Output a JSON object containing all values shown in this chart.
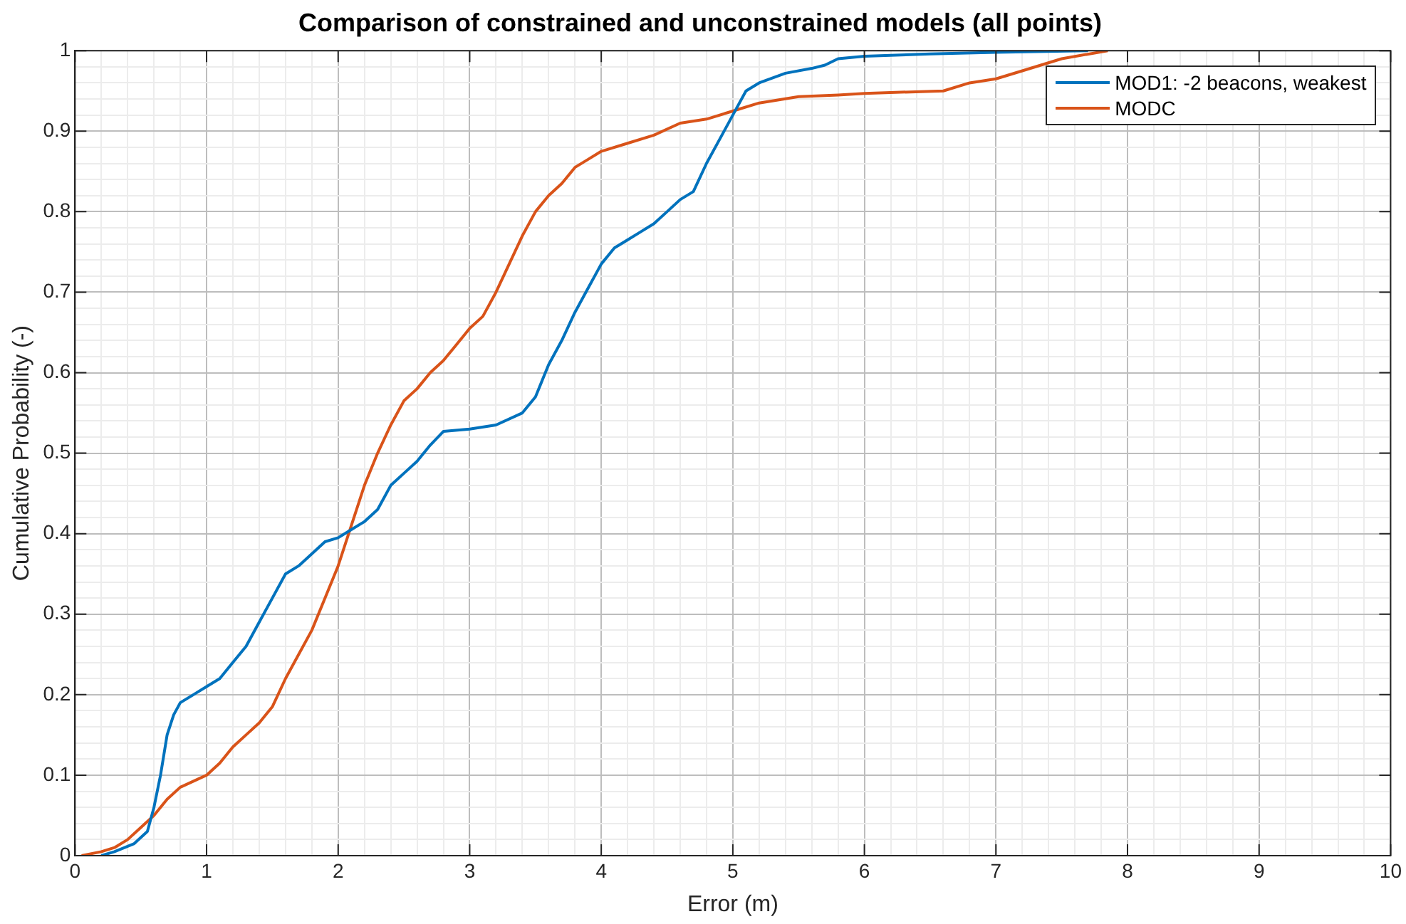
{
  "chart_data": {
    "type": "line",
    "title": "Comparison of constrained and unconstrained models (all points)",
    "xlabel": "Error (m)",
    "ylabel": "Cumulative Probability (-)",
    "series": [
      {
        "name": "MOD1: -2 beacons, weakest",
        "color": "#0072bd",
        "x": [
          0.2,
          0.3,
          0.45,
          0.55,
          0.6,
          0.65,
          0.7,
          0.75,
          0.8,
          0.9,
          1.0,
          1.1,
          1.2,
          1.3,
          1.4,
          1.5,
          1.6,
          1.7,
          1.8,
          1.9,
          2.0,
          2.1,
          2.2,
          2.3,
          2.4,
          2.5,
          2.6,
          2.7,
          2.8,
          3.0,
          3.2,
          3.4,
          3.5,
          3.6,
          3.7,
          3.8,
          3.9,
          4.0,
          4.1,
          4.2,
          4.3,
          4.4,
          4.5,
          4.6,
          4.7,
          4.8,
          4.9,
          5.0,
          5.1,
          5.2,
          5.4,
          5.6,
          5.7,
          5.8,
          6.0,
          6.5,
          7.0,
          7.7
        ],
        "values": [
          0,
          0.005,
          0.015,
          0.03,
          0.06,
          0.1,
          0.15,
          0.175,
          0.19,
          0.2,
          0.21,
          0.22,
          0.24,
          0.26,
          0.29,
          0.32,
          0.35,
          0.36,
          0.375,
          0.39,
          0.395,
          0.405,
          0.415,
          0.43,
          0.46,
          0.475,
          0.49,
          0.51,
          0.527,
          0.53,
          0.535,
          0.55,
          0.57,
          0.61,
          0.64,
          0.675,
          0.705,
          0.735,
          0.755,
          0.765,
          0.775,
          0.785,
          0.8,
          0.815,
          0.825,
          0.86,
          0.89,
          0.92,
          0.95,
          0.96,
          0.972,
          0.978,
          0.982,
          0.99,
          0.993,
          0.996,
          0.998,
          1.0
        ]
      },
      {
        "name": "MODC",
        "color": "#d95319",
        "x": [
          0.05,
          0.2,
          0.3,
          0.4,
          0.5,
          0.6,
          0.7,
          0.8,
          1.0,
          1.1,
          1.2,
          1.3,
          1.4,
          1.5,
          1.6,
          1.7,
          1.8,
          1.9,
          2.0,
          2.1,
          2.2,
          2.3,
          2.4,
          2.5,
          2.6,
          2.7,
          2.8,
          2.9,
          3.0,
          3.1,
          3.2,
          3.3,
          3.4,
          3.5,
          3.6,
          3.7,
          3.8,
          3.9,
          4.0,
          4.2,
          4.4,
          4.6,
          4.8,
          5.0,
          5.2,
          5.5,
          5.8,
          6.0,
          6.6,
          6.8,
          7.0,
          7.2,
          7.5,
          7.85
        ],
        "values": [
          0,
          0.005,
          0.01,
          0.02,
          0.035,
          0.05,
          0.07,
          0.085,
          0.1,
          0.115,
          0.135,
          0.15,
          0.165,
          0.185,
          0.22,
          0.25,
          0.28,
          0.32,
          0.36,
          0.41,
          0.46,
          0.5,
          0.535,
          0.565,
          0.58,
          0.6,
          0.615,
          0.635,
          0.655,
          0.67,
          0.7,
          0.735,
          0.77,
          0.8,
          0.82,
          0.835,
          0.855,
          0.865,
          0.875,
          0.885,
          0.895,
          0.91,
          0.915,
          0.925,
          0.935,
          0.943,
          0.945,
          0.947,
          0.95,
          0.96,
          0.965,
          0.975,
          0.99,
          1.0
        ]
      }
    ],
    "xlim": [
      0,
      10
    ],
    "xticks": [
      0,
      {
        "value": 0.2,
        "label": null
      },
      {
        "value": 0.4,
        "label": null
      },
      {
        "value": 0.6,
        "label": null
      },
      {
        "value": 0.8,
        "label": null
      },
      1,
      {
        "value": 1.2,
        "label": null
      },
      {
        "value": 1.4,
        "label": null
      },
      {
        "value": 1.6,
        "label": null
      },
      {
        "value": 1.8,
        "label": null
      },
      2,
      {
        "value": 2.2,
        "label": null
      },
      {
        "value": 2.4,
        "label": null
      },
      {
        "value": 2.6,
        "label": null
      },
      {
        "value": 2.8,
        "label": null
      },
      3,
      {
        "value": 3.2,
        "label": null
      },
      {
        "value": 3.4,
        "label": null
      },
      {
        "value": 3.6,
        "label": null
      },
      {
        "value": 3.8,
        "label": null
      },
      4,
      {
        "value": 4.2,
        "label": null
      },
      {
        "value": 4.4,
        "label": null
      },
      {
        "value": 4.6,
        "label": null
      },
      {
        "value": 4.8,
        "label": null
      },
      5,
      {
        "value": 5.2,
        "label": null
      },
      {
        "value": 5.4,
        "label": null
      },
      {
        "value": 5.6,
        "label": null
      },
      {
        "value": 5.8,
        "label": null
      },
      6,
      {
        "value": 6.2,
        "label": null
      },
      {
        "value": 6.4,
        "label": null
      },
      {
        "value": 6.6,
        "label": null
      },
      {
        "value": 6.8,
        "label": null
      },
      7,
      {
        "value": 7.2,
        "label": null
      },
      {
        "value": 7.4,
        "label": null
      },
      {
        "value": 7.6,
        "label": null
      },
      {
        "value": 7.8,
        "label": null
      },
      8,
      {
        "value": 8.2,
        "label": null
      },
      {
        "value": 8.4,
        "label": null
      },
      {
        "value": 8.6,
        "label": null
      },
      {
        "value": 8.8,
        "label": null
      },
      9,
      {
        "value": 9.2,
        "label": null
      },
      {
        "value": 9.4,
        "label": null
      },
      {
        "value": 9.6,
        "label": null
      },
      {
        "value": 9.8,
        "label": null
      },
      10
    ],
    "ylim": [
      0,
      1
    ],
    "yticks": [
      0,
      {
        "value": 0.02,
        "label": null
      },
      {
        "value": 0.04,
        "label": null
      },
      {
        "value": 0.06,
        "label": null
      },
      {
        "value": 0.08,
        "label": null
      },
      0.1,
      {
        "value": 0.12,
        "label": null
      },
      {
        "value": 0.14,
        "label": null
      },
      {
        "value": 0.16,
        "label": null
      },
      {
        "value": 0.18,
        "label": null
      },
      0.2,
      {
        "value": 0.22,
        "label": null
      },
      {
        "value": 0.24,
        "label": null
      },
      {
        "value": 0.26,
        "label": null
      },
      {
        "value": 0.28,
        "label": null
      },
      0.3,
      {
        "value": 0.32,
        "label": null
      },
      {
        "value": 0.34,
        "label": null
      },
      {
        "value": 0.36,
        "label": null
      },
      {
        "value": 0.38,
        "label": null
      },
      0.4,
      {
        "value": 0.42,
        "label": null
      },
      {
        "value": 0.44,
        "label": null
      },
      {
        "value": 0.46,
        "label": null
      },
      {
        "value": 0.48,
        "label": null
      },
      0.5,
      {
        "value": 0.52,
        "label": null
      },
      {
        "value": 0.54,
        "label": null
      },
      {
        "value": 0.56,
        "label": null
      },
      {
        "value": 0.58,
        "label": null
      },
      0.6,
      {
        "value": 0.62,
        "label": null
      },
      {
        "value": 0.64,
        "label": null
      },
      {
        "value": 0.66,
        "label": null
      },
      {
        "value": 0.68,
        "label": null
      },
      0.7,
      {
        "value": 0.72,
        "label": null
      },
      {
        "value": 0.74,
        "label": null
      },
      {
        "value": 0.76,
        "label": null
      },
      {
        "value": 0.78,
        "label": null
      },
      0.8,
      {
        "value": 0.82,
        "label": null
      },
      {
        "value": 0.84,
        "label": null
      },
      {
        "value": 0.86,
        "label": null
      },
      {
        "value": 0.88,
        "label": null
      },
      0.9,
      {
        "value": 0.92,
        "label": null
      },
      {
        "value": 0.94,
        "label": null
      },
      {
        "value": 0.96,
        "label": null
      },
      {
        "value": 0.98,
        "label": null
      },
      1
    ],
    "grid": true,
    "legend": "top right",
    "marker": "none",
    "line_style": "solid"
  }
}
